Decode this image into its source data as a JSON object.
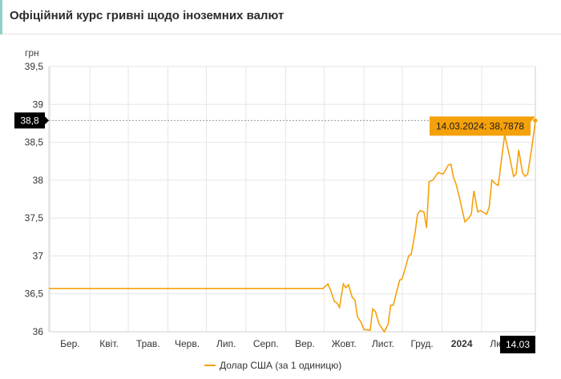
{
  "page": {
    "title": "Офіційний курс гривні щодо іноземних валют"
  },
  "colors": {
    "series": "#f5a10b",
    "grid": "#e6e6e6",
    "crosshair": "#9a9a9a",
    "label_bg": "#000000",
    "tooltip_bg": "#f5a10b"
  },
  "chart_data": {
    "type": "line",
    "title": "",
    "ylabel": "грн",
    "xlabel": "",
    "ylim": [
      36,
      39.5
    ],
    "yticks": [
      "36",
      "36,5",
      "37",
      "37,5",
      "38",
      "38,5",
      "39",
      "39,5"
    ],
    "ytick_values": [
      36,
      36.5,
      37,
      37.5,
      38,
      38.5,
      39,
      39.5
    ],
    "xticks": [
      "Бер.",
      "Квіт.",
      "Трав.",
      "Черв.",
      "Лип.",
      "Серп.",
      "Вер.",
      "Жовт.",
      "Лист.",
      "Груд.",
      "2024",
      "Лют."
    ],
    "xtick_dates": [
      "2023-03-01",
      "2023-04-01",
      "2023-05-01",
      "2023-06-01",
      "2023-07-01",
      "2023-08-01",
      "2023-09-01",
      "2023-10-01",
      "2023-11-01",
      "2023-12-01",
      "2024-01-01",
      "2024-02-01"
    ],
    "x_start": "2023-02-28",
    "x_end": "2024-03-14",
    "crosshair": {
      "y_label": "38,8",
      "x_label": "14.03",
      "tooltip": "14.03.2024: 38,7878",
      "y_value": 38.7878
    },
    "grid": true,
    "legend_position": "bottom",
    "series": [
      {
        "name": "Долар США (за 1 одиницю)",
        "color": "#f5a10b",
        "points": [
          [
            "2023-02-28",
            36.5686
          ],
          [
            "2023-09-30",
            36.5686
          ],
          [
            "2023-10-04",
            36.63
          ],
          [
            "2023-10-06",
            36.55
          ],
          [
            "2023-10-09",
            36.4
          ],
          [
            "2023-10-11",
            36.38
          ],
          [
            "2023-10-13",
            36.32
          ],
          [
            "2023-10-16",
            36.63
          ],
          [
            "2023-10-18",
            36.58
          ],
          [
            "2023-10-20",
            36.62
          ],
          [
            "2023-10-23",
            36.45
          ],
          [
            "2023-10-25",
            36.42
          ],
          [
            "2023-10-27",
            36.2
          ],
          [
            "2023-10-30",
            36.12
          ],
          [
            "2023-11-01",
            36.03
          ],
          [
            "2023-11-06",
            36.02
          ],
          [
            "2023-11-08",
            36.3
          ],
          [
            "2023-11-10",
            36.27
          ],
          [
            "2023-11-13",
            36.1
          ],
          [
            "2023-11-15",
            36.05
          ],
          [
            "2023-11-17",
            36.0
          ],
          [
            "2023-11-20",
            36.1
          ],
          [
            "2023-11-22",
            36.35
          ],
          [
            "2023-11-24",
            36.35
          ],
          [
            "2023-11-27",
            36.55
          ],
          [
            "2023-11-29",
            36.68
          ],
          [
            "2023-12-01",
            36.7
          ],
          [
            "2023-12-04",
            36.88
          ],
          [
            "2023-12-06",
            37.0
          ],
          [
            "2023-12-08",
            37.02
          ],
          [
            "2023-12-11",
            37.3
          ],
          [
            "2023-12-13",
            37.55
          ],
          [
            "2023-12-15",
            37.6
          ],
          [
            "2023-12-18",
            37.58
          ],
          [
            "2023-12-20",
            37.37
          ],
          [
            "2023-12-22",
            37.98
          ],
          [
            "2023-12-25",
            38.0
          ],
          [
            "2023-12-27",
            38.05
          ],
          [
            "2023-12-29",
            38.1
          ],
          [
            "2024-01-02",
            38.08
          ],
          [
            "2024-01-04",
            38.14
          ],
          [
            "2024-01-06",
            38.2
          ],
          [
            "2024-01-08",
            38.21
          ],
          [
            "2024-01-10",
            38.04
          ],
          [
            "2024-01-12",
            37.95
          ],
          [
            "2024-01-15",
            37.75
          ],
          [
            "2024-01-17",
            37.6
          ],
          [
            "2024-01-19",
            37.45
          ],
          [
            "2024-01-22",
            37.5
          ],
          [
            "2024-01-24",
            37.55
          ],
          [
            "2024-01-26",
            37.86
          ],
          [
            "2024-01-29",
            37.58
          ],
          [
            "2024-01-31",
            37.6
          ],
          [
            "2024-02-02",
            37.58
          ],
          [
            "2024-02-05",
            37.55
          ],
          [
            "2024-02-07",
            37.65
          ],
          [
            "2024-02-09",
            38.0
          ],
          [
            "2024-02-12",
            37.95
          ],
          [
            "2024-02-14",
            37.93
          ],
          [
            "2024-02-16",
            38.2
          ],
          [
            "2024-02-19",
            38.6
          ],
          [
            "2024-02-21",
            38.45
          ],
          [
            "2024-02-23",
            38.3
          ],
          [
            "2024-02-26",
            38.05
          ],
          [
            "2024-02-28",
            38.08
          ],
          [
            "2024-03-01",
            38.4
          ],
          [
            "2024-03-04",
            38.1
          ],
          [
            "2024-03-06",
            38.05
          ],
          [
            "2024-03-08",
            38.08
          ],
          [
            "2024-03-11",
            38.4
          ],
          [
            "2024-03-13",
            38.65
          ],
          [
            "2024-03-14",
            38.7878
          ]
        ]
      }
    ]
  }
}
